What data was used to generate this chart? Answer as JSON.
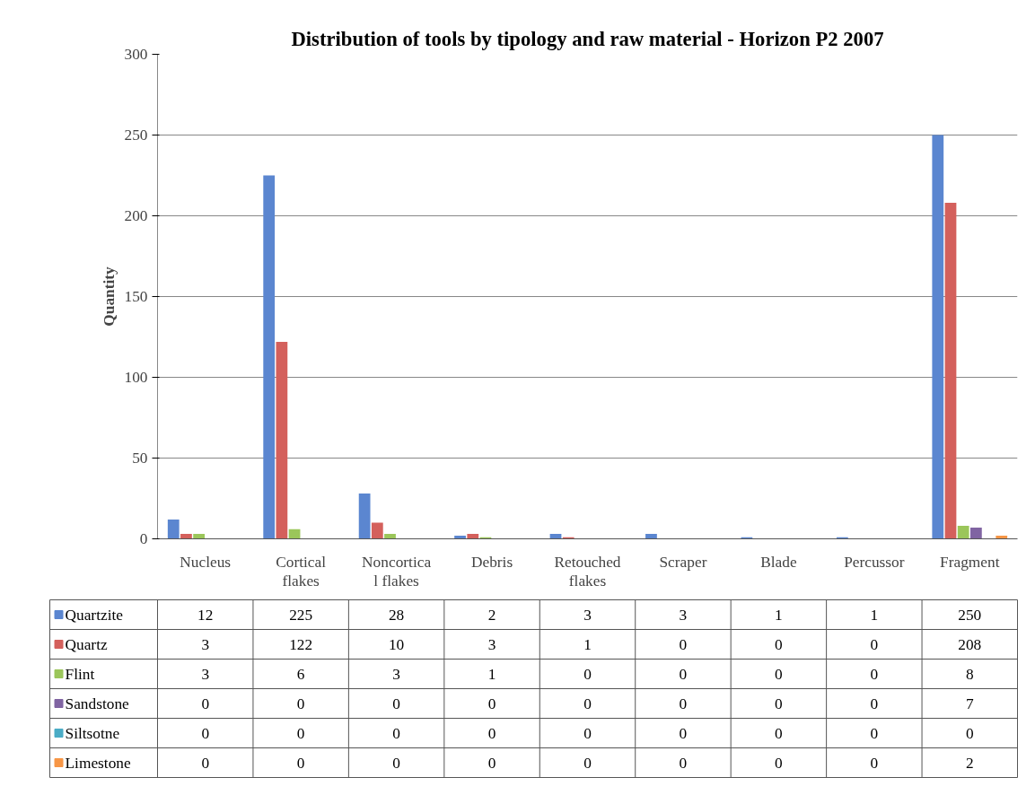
{
  "chart_data": {
    "type": "bar",
    "title": "Distribution of tools by tipology and raw material - Horizon P2 2007",
    "ylabel": "Quantity",
    "categories": [
      "Nucleus",
      "Cortical flakes",
      "Noncortica l flakes",
      "Debris",
      "Retouched flakes",
      "Scraper",
      "Blade",
      "Percussor",
      "Fragment"
    ],
    "series": [
      {
        "name": "Quartzite",
        "color": "#5b86d0",
        "values": [
          12,
          225,
          28,
          2,
          3,
          3,
          1,
          1,
          250
        ]
      },
      {
        "name": "Quartz",
        "color": "#d4605c",
        "values": [
          3,
          122,
          10,
          3,
          1,
          0,
          0,
          0,
          208
        ]
      },
      {
        "name": "Flint",
        "color": "#9bc65a",
        "values": [
          3,
          6,
          3,
          1,
          0,
          0,
          0,
          0,
          8
        ]
      },
      {
        "name": "Sandstone",
        "color": "#8064a2",
        "values": [
          0,
          0,
          0,
          0,
          0,
          0,
          0,
          0,
          7
        ]
      },
      {
        "name": "Siltsotne",
        "color": "#4bacc6",
        "values": [
          0,
          0,
          0,
          0,
          0,
          0,
          0,
          0,
          0
        ]
      },
      {
        "name": "Limestone",
        "color": "#f79646",
        "values": [
          0,
          0,
          0,
          0,
          0,
          0,
          0,
          0,
          2
        ]
      }
    ],
    "legend": "bottom left",
    "ylim": [
      0,
      300
    ],
    "yticks": [
      0,
      50,
      100,
      150,
      200,
      250,
      300
    ],
    "grid": "y",
    "data_labels": true
  }
}
